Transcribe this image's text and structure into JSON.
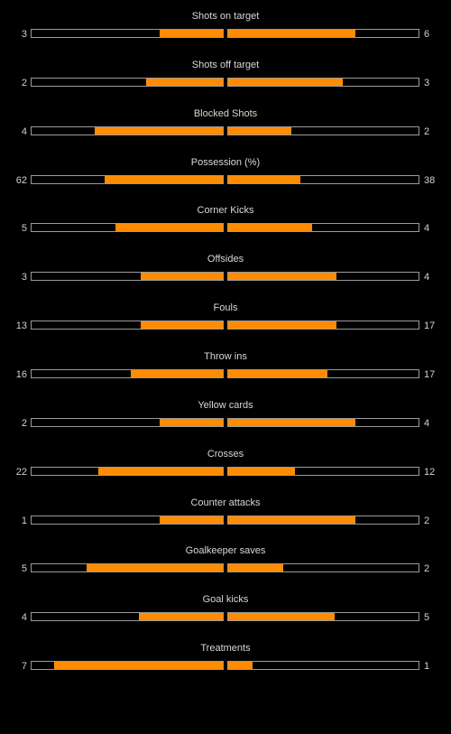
{
  "stats": [
    {
      "label": "Shots on target",
      "home": "3",
      "away": "6",
      "home_fraction": 0.33,
      "away_fraction": 0.67
    },
    {
      "label": "Shots off target",
      "home": "2",
      "away": "3",
      "home_fraction": 0.4,
      "away_fraction": 0.6
    },
    {
      "label": "Blocked Shots",
      "home": "4",
      "away": "2",
      "home_fraction": 0.67,
      "away_fraction": 0.33
    },
    {
      "label": "Possession (%)",
      "home": "62",
      "away": "38",
      "home_fraction": 0.62,
      "away_fraction": 0.38
    },
    {
      "label": "Corner Kicks",
      "home": "5",
      "away": "4",
      "home_fraction": 0.56,
      "away_fraction": 0.44
    },
    {
      "label": "Offsides",
      "home": "3",
      "away": "4",
      "home_fraction": 0.43,
      "away_fraction": 0.57
    },
    {
      "label": "Fouls",
      "home": "13",
      "away": "17",
      "home_fraction": 0.43,
      "away_fraction": 0.57
    },
    {
      "label": "Throw ins",
      "home": "16",
      "away": "17",
      "home_fraction": 0.48,
      "away_fraction": 0.52
    },
    {
      "label": "Yellow cards",
      "home": "2",
      "away": "4",
      "home_fraction": 0.33,
      "away_fraction": 0.67
    },
    {
      "label": "Crosses",
      "home": "22",
      "away": "12",
      "home_fraction": 0.65,
      "away_fraction": 0.35
    },
    {
      "label": "Counter attacks",
      "home": "1",
      "away": "2",
      "home_fraction": 0.33,
      "away_fraction": 0.67
    },
    {
      "label": "Goalkeeper saves",
      "home": "5",
      "away": "2",
      "home_fraction": 0.71,
      "away_fraction": 0.29
    },
    {
      "label": "Goal kicks",
      "home": "4",
      "away": "5",
      "home_fraction": 0.44,
      "away_fraction": 0.56
    },
    {
      "label": "Treatments",
      "home": "7",
      "away": "1",
      "home_fraction": 0.88,
      "away_fraction": 0.13
    }
  ],
  "colors": {
    "bar_fill": "#ff8c00",
    "track_border": "#9a9a9a",
    "background": "#000000",
    "text": "#d0d0d0"
  }
}
